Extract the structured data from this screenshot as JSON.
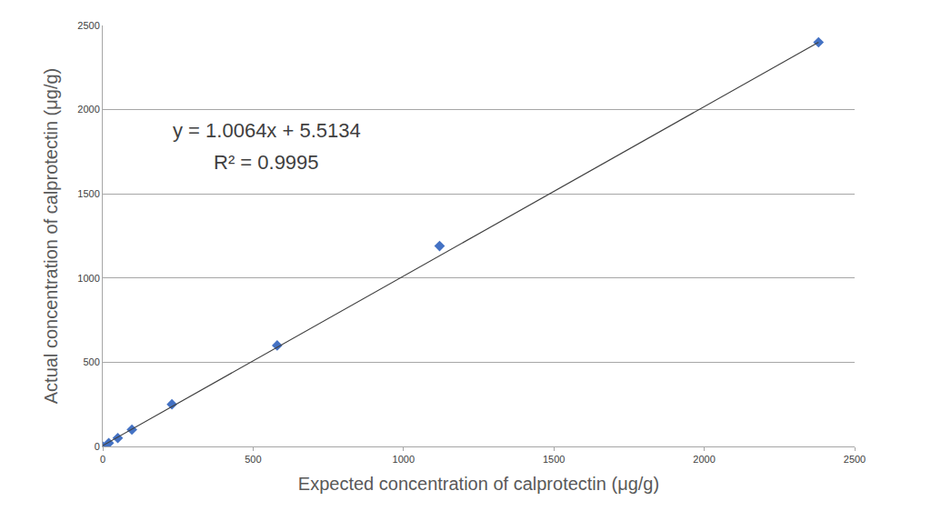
{
  "chart_data": {
    "type": "scatter",
    "x_label": "Expected concentration of calprotectin (μg/g)",
    "y_label": "Actual concentration of calprotectin (μg/g)",
    "annotations": [
      "y = 1.0064x + 5.5134",
      "R² = 0.9995"
    ],
    "series": [
      {
        "type": "scatter",
        "color": "#4472c4",
        "marker": "diamond",
        "x": [
          0,
          20,
          50,
          97,
          230,
          580,
          1120,
          2380
        ],
        "values": [
          0,
          20,
          50,
          100,
          250,
          600,
          1190,
          2400
        ]
      },
      {
        "type": "line",
        "color": "#404040",
        "line_style": "solid",
        "x": [
          0,
          2380
        ],
        "values": [
          5,
          2400
        ]
      }
    ],
    "xlim": [
      0,
      2500
    ],
    "xticks": [
      0,
      500,
      1000,
      1500,
      2000,
      2500
    ],
    "ylim": [
      0,
      2500
    ],
    "yticks": [
      0,
      500,
      1000,
      1500,
      2000,
      2500
    ],
    "grid": "y"
  }
}
